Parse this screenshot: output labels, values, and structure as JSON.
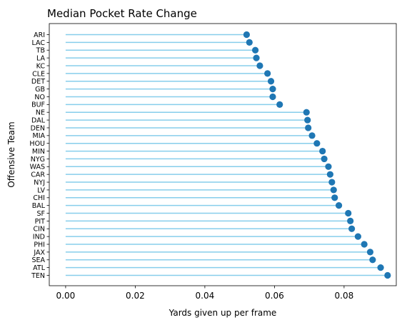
{
  "chart_data": {
    "type": "lollipop",
    "title": "Median Pocket Rate Change",
    "xlabel": "Yards given up per frame",
    "ylabel": "Offensive Team",
    "xlim": [
      -0.0047,
      0.095
    ],
    "xticks": [
      0.0,
      0.02,
      0.04,
      0.06,
      0.08
    ],
    "xtick_labels": [
      "0.00",
      "0.02",
      "0.04",
      "0.06",
      "0.08"
    ],
    "grid": false,
    "stem_color": "#87ceeb",
    "marker_color": "#1f77b4",
    "categories": [
      "ARI",
      "LAC",
      "TB",
      "LA",
      "KC",
      "CLE",
      "DET",
      "GB",
      "NO",
      "BUF",
      "NE",
      "DAL",
      "DEN",
      "MIA",
      "HOU",
      "MIN",
      "NYG",
      "WAS",
      "CAR",
      "NYJ",
      "LV",
      "CHI",
      "BAL",
      "SF",
      "PIT",
      "CIN",
      "IND",
      "PHI",
      "JAX",
      "SEA",
      "ATL",
      "TEN"
    ],
    "values": [
      0.052,
      0.0528,
      0.0545,
      0.0548,
      0.0558,
      0.058,
      0.059,
      0.0595,
      0.0595,
      0.0615,
      0.0692,
      0.0695,
      0.0697,
      0.0708,
      0.0722,
      0.0738,
      0.0743,
      0.0755,
      0.076,
      0.0765,
      0.077,
      0.0773,
      0.0785,
      0.0812,
      0.0818,
      0.0822,
      0.084,
      0.0858,
      0.0875,
      0.0882,
      0.0905,
      0.0925
    ]
  }
}
